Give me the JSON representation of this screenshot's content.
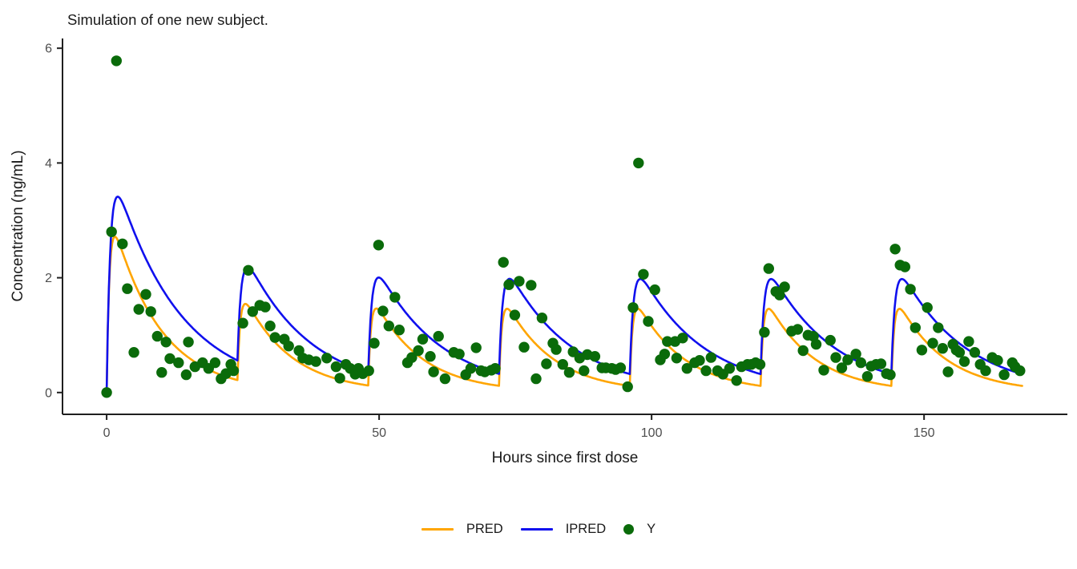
{
  "chart_data": {
    "type": "line+scatter",
    "title": "Simulation of one new subject.",
    "xlabel": "Hours since first dose",
    "ylabel": "Concentration (ng/mL)",
    "xlim": [
      -8.1,
      176.3
    ],
    "ylim": [
      -0.38,
      6.17
    ],
    "xticks": [
      0,
      50,
      100,
      150
    ],
    "yticks": [
      0,
      2,
      4,
      6
    ],
    "grid": false,
    "legend_position": "bottom",
    "colors": {
      "pred": "#FFA500",
      "ipred": "#1010EE",
      "y": "#0A6B0A",
      "axis_line": "#1f1f1f",
      "tick_text": "#4D4D4D",
      "title_text": "#1a1a1a"
    },
    "series": [
      {
        "name": "PRED",
        "kind": "pk-line",
        "color": "#FFA500",
        "ka": 2.0,
        "ke": 0.115,
        "t_end": 168,
        "doses": [
          {
            "t": 0,
            "a": 3.43
          },
          {
            "t": 24,
            "a": 1.72
          },
          {
            "t": 48,
            "a": 1.72
          },
          {
            "t": 72,
            "a": 1.72
          },
          {
            "t": 96,
            "a": 1.72
          },
          {
            "t": 120,
            "a": 1.72
          },
          {
            "t": 144,
            "a": 1.72
          }
        ]
      },
      {
        "name": "IPRED",
        "kind": "pk-line",
        "color": "#1010EE",
        "ka": 1.5,
        "ke": 0.085,
        "t_end": 168,
        "doses": [
          {
            "t": 0,
            "a": 4.3
          },
          {
            "t": 24,
            "a": 2.15
          },
          {
            "t": 48,
            "a": 2.15
          },
          {
            "t": 72,
            "a": 2.15
          },
          {
            "t": 96,
            "a": 2.15
          },
          {
            "t": 120,
            "a": 2.15
          },
          {
            "t": 144,
            "a": 2.15
          }
        ]
      },
      {
        "name": "Y",
        "kind": "scatter",
        "color": "#0A6B0A",
        "point_radius": 6.7,
        "points": [
          [
            0,
            0
          ],
          [
            0.9,
            2.8
          ],
          [
            1.8,
            5.78
          ],
          [
            2.9,
            2.59
          ],
          [
            3.8,
            1.81
          ],
          [
            5,
            0.7
          ],
          [
            5.9,
            1.45
          ],
          [
            7.2,
            1.71
          ],
          [
            8.1,
            1.41
          ],
          [
            9.3,
            0.98
          ],
          [
            10.1,
            0.35
          ],
          [
            10.9,
            0.88
          ],
          [
            11.6,
            0.59
          ],
          [
            13.2,
            0.52
          ],
          [
            14.6,
            0.31
          ],
          [
            15,
            0.88
          ],
          [
            16.2,
            0.45
          ],
          [
            17.6,
            0.52
          ],
          [
            18.7,
            0.42
          ],
          [
            19.9,
            0.52
          ],
          [
            21,
            0.24
          ],
          [
            21.9,
            0.33
          ],
          [
            22.8,
            0.49
          ],
          [
            23.3,
            0.38
          ],
          [
            25,
            1.21
          ],
          [
            26,
            2.13
          ],
          [
            26.8,
            1.41
          ],
          [
            28.1,
            1.52
          ],
          [
            29.1,
            1.49
          ],
          [
            30,
            1.16
          ],
          [
            30.9,
            0.96
          ],
          [
            32.6,
            0.93
          ],
          [
            33.4,
            0.81
          ],
          [
            35.3,
            0.73
          ],
          [
            36,
            0.6
          ],
          [
            37.1,
            0.57
          ],
          [
            38.4,
            0.54
          ],
          [
            40.4,
            0.6
          ],
          [
            42.1,
            0.45
          ],
          [
            42.8,
            0.25
          ],
          [
            43.9,
            0.49
          ],
          [
            44.7,
            0.42
          ],
          [
            45.6,
            0.32
          ],
          [
            46.2,
            0.42
          ],
          [
            47,
            0.33
          ],
          [
            48.1,
            0.38
          ],
          [
            49.1,
            0.86
          ],
          [
            49.9,
            2.57
          ],
          [
            50.7,
            1.42
          ],
          [
            51.8,
            1.16
          ],
          [
            52.9,
            1.66
          ],
          [
            53.7,
            1.09
          ],
          [
            55.2,
            0.52
          ],
          [
            56,
            0.61
          ],
          [
            57.2,
            0.73
          ],
          [
            58,
            0.93
          ],
          [
            59.4,
            0.63
          ],
          [
            60,
            0.36
          ],
          [
            60.9,
            0.98
          ],
          [
            62.1,
            0.24
          ],
          [
            63.7,
            0.7
          ],
          [
            64.7,
            0.67
          ],
          [
            65.9,
            0.31
          ],
          [
            66.8,
            0.42
          ],
          [
            67.8,
            0.78
          ],
          [
            68.7,
            0.38
          ],
          [
            69.4,
            0.36
          ],
          [
            70.6,
            0.39
          ],
          [
            71.3,
            0.42
          ],
          [
            72.8,
            2.27
          ],
          [
            73.8,
            1.88
          ],
          [
            74.9,
            1.35
          ],
          [
            75.7,
            1.94
          ],
          [
            76.6,
            0.79
          ],
          [
            77.9,
            1.87
          ],
          [
            78.8,
            0.24
          ],
          [
            79.9,
            1.3
          ],
          [
            80.7,
            0.5
          ],
          [
            81.9,
            0.86
          ],
          [
            82.5,
            0.75
          ],
          [
            83.7,
            0.49
          ],
          [
            84.9,
            0.35
          ],
          [
            85.6,
            0.71
          ],
          [
            86.8,
            0.6
          ],
          [
            87.6,
            0.38
          ],
          [
            88.2,
            0.66
          ],
          [
            89.6,
            0.63
          ],
          [
            90.9,
            0.43
          ],
          [
            91.6,
            0.43
          ],
          [
            92.7,
            0.42
          ],
          [
            93.4,
            0.4
          ],
          [
            94.3,
            0.43
          ],
          [
            95.6,
            0.1
          ],
          [
            96.6,
            1.48
          ],
          [
            97.6,
            4.0
          ],
          [
            98.5,
            2.06
          ],
          [
            99.4,
            1.24
          ],
          [
            100.6,
            1.79
          ],
          [
            101.6,
            0.57
          ],
          [
            102.4,
            0.67
          ],
          [
            102.9,
            0.89
          ],
          [
            104.3,
            0.89
          ],
          [
            104.6,
            0.6
          ],
          [
            105.7,
            0.95
          ],
          [
            106.5,
            0.42
          ],
          [
            107.9,
            0.52
          ],
          [
            108.8,
            0.56
          ],
          [
            110,
            0.38
          ],
          [
            110.9,
            0.61
          ],
          [
            112.1,
            0.38
          ],
          [
            113.1,
            0.32
          ],
          [
            114.3,
            0.42
          ],
          [
            115.6,
            0.21
          ],
          [
            116.5,
            0.45
          ],
          [
            117.6,
            0.49
          ],
          [
            118.3,
            0.49
          ],
          [
            119.1,
            0.52
          ],
          [
            119.9,
            0.49
          ],
          [
            120.7,
            1.05
          ],
          [
            121.5,
            2.16
          ],
          [
            122.8,
            1.76
          ],
          [
            123.5,
            1.7
          ],
          [
            124.4,
            1.84
          ],
          [
            125.7,
            1.07
          ],
          [
            126.8,
            1.1
          ],
          [
            127.8,
            0.73
          ],
          [
            128.7,
            1.0
          ],
          [
            129.7,
            0.98
          ],
          [
            130.2,
            0.84
          ],
          [
            131.6,
            0.39
          ],
          [
            132.8,
            0.91
          ],
          [
            133.8,
            0.61
          ],
          [
            134.9,
            0.43
          ],
          [
            136,
            0.57
          ],
          [
            137.5,
            0.67
          ],
          [
            138.4,
            0.52
          ],
          [
            139.6,
            0.28
          ],
          [
            140.3,
            0.46
          ],
          [
            141.2,
            0.49
          ],
          [
            142.1,
            0.5
          ],
          [
            143.1,
            0.33
          ],
          [
            143.8,
            0.31
          ],
          [
            144.7,
            2.5
          ],
          [
            145.6,
            2.22
          ],
          [
            146.5,
            2.19
          ],
          [
            147.5,
            1.8
          ],
          [
            148.4,
            1.13
          ],
          [
            149.6,
            0.74
          ],
          [
            150.6,
            1.48
          ],
          [
            151.6,
            0.86
          ],
          [
            152.6,
            1.13
          ],
          [
            153.4,
            0.77
          ],
          [
            154.4,
            0.36
          ],
          [
            155.3,
            0.84
          ],
          [
            155.9,
            0.74
          ],
          [
            156.5,
            0.7
          ],
          [
            157.4,
            0.54
          ],
          [
            158.2,
            0.89
          ],
          [
            159.3,
            0.7
          ],
          [
            160.3,
            0.49
          ],
          [
            161.3,
            0.38
          ],
          [
            162.5,
            0.61
          ],
          [
            163.5,
            0.56
          ],
          [
            164.7,
            0.31
          ],
          [
            166.2,
            0.52
          ],
          [
            166.7,
            0.45
          ],
          [
            167.6,
            0.38
          ]
        ]
      }
    ],
    "legend": {
      "entries": [
        {
          "label": "PRED",
          "swatch": "line",
          "color": "#FFA500"
        },
        {
          "label": "IPRED",
          "swatch": "line",
          "color": "#1010EE"
        },
        {
          "label": "Y",
          "swatch": "point",
          "color": "#0A6B0A"
        }
      ]
    }
  }
}
